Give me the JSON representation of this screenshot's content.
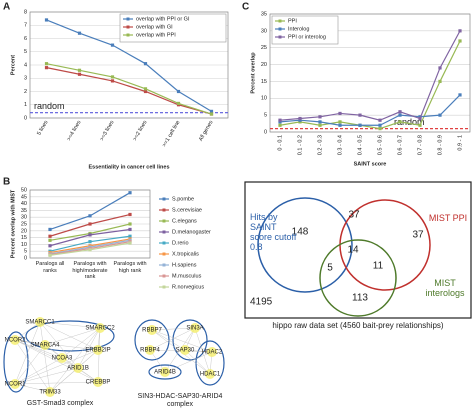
{
  "chart_data": [
    {
      "type": "line",
      "panel": "A",
      "ylabel": "Percent",
      "xlabel": "Essentiality in cancer cell lines",
      "categories": [
        "5 lines",
        ">=4 lines",
        ">=3 lines",
        ">=2 lines",
        ">=1 cell line",
        "All genes"
      ],
      "series": [
        {
          "name": "overlap with PPI or GI",
          "color": "#4a7ebb",
          "values": [
            7.4,
            6.4,
            5.5,
            4.1,
            2.0,
            0.5
          ]
        },
        {
          "name": "overlap with GI",
          "color": "#be4b48",
          "values": [
            3.8,
            3.3,
            2.8,
            2.0,
            1.0,
            0.3
          ]
        },
        {
          "name": "overlap with PPI",
          "color": "#98b954",
          "values": [
            4.1,
            3.6,
            3.1,
            2.2,
            1.1,
            0.3
          ]
        }
      ],
      "reference": {
        "label": "random",
        "value": 0.4,
        "color": "#5a5adb"
      },
      "ylim": [
        0,
        8
      ],
      "yticks": [
        0,
        1,
        2,
        3,
        4,
        5,
        6,
        7,
        8
      ],
      "grid": true,
      "legend": "upper right"
    },
    {
      "type": "line",
      "panel": "B",
      "ylabel": "Percent overlap with MIST",
      "categories": [
        "Paralogs all ranks",
        "Paralogs with high/moderate rank",
        "Paralogs with high rank"
      ],
      "series": [
        {
          "name": "S.pombe",
          "color": "#4a7ebb",
          "values": [
            21,
            31,
            48
          ]
        },
        {
          "name": "S.cerevisiae",
          "color": "#be4b48",
          "values": [
            16,
            25,
            32
          ]
        },
        {
          "name": "C.elegans",
          "color": "#98b954",
          "values": [
            13,
            18,
            25
          ]
        },
        {
          "name": "D.melanogaster",
          "color": "#7d60a0",
          "values": [
            9,
            17,
            21
          ]
        },
        {
          "name": "D.rerio",
          "color": "#46aac5",
          "values": [
            5,
            12,
            16
          ]
        },
        {
          "name": "X.tropicalis",
          "color": "#f79646",
          "values": [
            4,
            9,
            14
          ]
        },
        {
          "name": "H.sapiens",
          "color": "#95b3d7",
          "values": [
            3,
            8,
            13
          ]
        },
        {
          "name": "M.musculus",
          "color": "#d99694",
          "values": [
            2.5,
            7,
            12
          ]
        },
        {
          "name": "R.norvegicus",
          "color": "#c3d69b",
          "values": [
            2,
            6,
            11
          ]
        }
      ],
      "ylim": [
        0,
        50
      ],
      "yticks": [
        0,
        5,
        10,
        15,
        20,
        25,
        30,
        35,
        40,
        45,
        50
      ],
      "grid": true,
      "legend": "right"
    },
    {
      "type": "line",
      "panel": "C",
      "ylabel": "Percent overlap",
      "xlabel": "SAINT score",
      "categories": [
        "0 - 0.1",
        "0.1 - 0.2",
        "0.2 - 0.3",
        "0.3 - 0.4",
        "0.4 - 0.5",
        "0.5 - 0.6",
        "0.6 - 0.7",
        "0.7 - 0.8",
        "0.8 - 0.9",
        "0.9 - 1"
      ],
      "series": [
        {
          "name": "PPI",
          "color": "#98b954",
          "values": [
            2,
            3,
            2,
            3,
            2,
            1,
            3,
            2,
            15,
            27
          ]
        },
        {
          "name": "Interolog",
          "color": "#4a7ebb",
          "values": [
            3,
            3.5,
            3,
            2,
            2,
            2,
            5,
            4.5,
            5,
            11
          ]
        },
        {
          "name": "PPI or interolog",
          "color": "#8064a2",
          "values": [
            3.5,
            4,
            4.5,
            5.5,
            5,
            3.5,
            6,
            4,
            19,
            30
          ]
        }
      ],
      "reference": {
        "label": "random",
        "value": 1,
        "color": "#e04040"
      },
      "ylim": [
        0,
        35
      ],
      "yticks": [
        0,
        5,
        10,
        15,
        20,
        25,
        30,
        35
      ],
      "grid": true,
      "legend": "upper left"
    }
  ],
  "venn": {
    "sets": [
      "Hits by SAINT score cutoff 0.8",
      "MIST PPI",
      "MIST interologs"
    ],
    "counts": [
      "148",
      "37",
      "37",
      "14",
      "5",
      "11",
      "113"
    ],
    "outside": "4195",
    "caption": "hippo raw data set (4560 bait-prey relationships)"
  },
  "networks": [
    {
      "title": "GST-Smad3 complex",
      "nodes": [
        "SMARCC1",
        "SMARCC2",
        "SMARCA4",
        "ERBB2IP",
        "NCOR2",
        "NCOA3",
        "ARID1B",
        "NCOR1",
        "CREBBP",
        "TRIM33"
      ]
    },
    {
      "title": "SIN3-HDAC-SAP30-ARID4 complex",
      "nodes": [
        "RBBP7",
        "SIN3A",
        "RBBP4",
        "SAP30",
        "HDAC2",
        "ARID4B",
        "HDAC1"
      ]
    }
  ]
}
